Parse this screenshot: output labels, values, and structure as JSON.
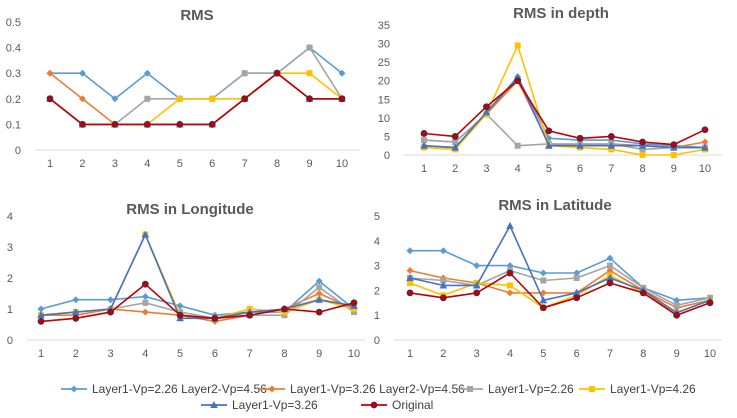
{
  "legend": [
    {
      "name": "Layer1-Vp=2.26  Layer2-Vp=4.56",
      "color": "#5b9bd5",
      "marker": "diamond"
    },
    {
      "name": "Layer1-Vp=3.26  Layer2-Vp=4.56",
      "color": "#ed7d31",
      "marker": "diamond"
    },
    {
      "name": "Layer1-Vp=2.26",
      "color": "#a5a5a5",
      "marker": "square"
    },
    {
      "name": "Layer1-Vp=4.26",
      "color": "#ffc000",
      "marker": "square"
    },
    {
      "name": "Layer1-Vp=3.26",
      "color": "#4472c4",
      "marker": "triangle"
    },
    {
      "name": "Original",
      "color": "#c00000",
      "marker": "circle"
    }
  ],
  "chart_data": [
    {
      "type": "line",
      "title": "RMS",
      "x": [
        1,
        2,
        3,
        4,
        5,
        6,
        7,
        8,
        9,
        10
      ],
      "ylim": [
        0,
        0.5
      ],
      "yticks": [
        "0",
        "0.1",
        "0.2",
        "0.3",
        "0.4",
        "0.5"
      ],
      "grid": false,
      "series": [
        {
          "name": "Layer1-Vp=2.26  Layer2-Vp=4.56",
          "values": [
            0.3,
            0.3,
            0.2,
            0.3,
            0.2,
            0.2,
            0.3,
            0.3,
            0.4,
            0.3
          ]
        },
        {
          "name": "Layer1-Vp=3.26  Layer2-Vp=4.56",
          "values": [
            0.3,
            0.2,
            0.1,
            0.1,
            0.1,
            0.1,
            0.2,
            0.3,
            0.2,
            0.2
          ]
        },
        {
          "name": "Layer1-Vp=2.26",
          "values": [
            0.2,
            0.1,
            0.1,
            0.2,
            0.2,
            0.2,
            0.3,
            0.3,
            0.4,
            0.2
          ]
        },
        {
          "name": "Layer1-Vp=4.26",
          "values": [
            0.2,
            0.1,
            0.1,
            0.1,
            0.2,
            0.2,
            0.2,
            0.3,
            0.3,
            0.2
          ]
        },
        {
          "name": "Layer1-Vp=3.26",
          "values": [
            0.2,
            0.1,
            0.1,
            0.1,
            0.1,
            0.1,
            0.2,
            0.3,
            0.2,
            0.2
          ]
        },
        {
          "name": "Original",
          "values": [
            0.2,
            0.1,
            0.1,
            0.1,
            0.1,
            0.1,
            0.2,
            0.3,
            0.2,
            0.2
          ]
        }
      ]
    },
    {
      "type": "line",
      "title": "RMS in depth",
      "x": [
        1,
        2,
        3,
        4,
        5,
        6,
        7,
        8,
        9,
        10
      ],
      "ylim": [
        0,
        35
      ],
      "yticks": [
        "0",
        "5",
        "10",
        "15",
        "20",
        "25",
        "30",
        "35"
      ],
      "grid": false,
      "series": [
        {
          "name": "Layer1-Vp=2.26  Layer2-Vp=4.56",
          "values": [
            4,
            3.5,
            11,
            21,
            4.5,
            4,
            4,
            3,
            2.5,
            2
          ]
        },
        {
          "name": "Layer1-Vp=3.26  Layer2-Vp=4.56",
          "values": [
            2.5,
            2,
            11,
            20,
            3,
            2.5,
            3,
            2.5,
            2,
            3.5
          ]
        },
        {
          "name": "Layer1-Vp=2.26",
          "values": [
            4,
            3.5,
            11,
            2.5,
            3,
            3,
            3,
            1.5,
            2,
            2
          ]
        },
        {
          "name": "Layer1-Vp=4.26",
          "values": [
            2,
            1.5,
            11,
            29.5,
            2.5,
            2,
            1.5,
            0,
            0,
            1.5
          ]
        },
        {
          "name": "Layer1-Vp=3.26",
          "values": [
            2.5,
            2,
            11.5,
            21,
            2.5,
            2.5,
            2.5,
            2.5,
            2,
            2
          ]
        },
        {
          "name": "Original",
          "values": [
            5.8,
            5,
            13,
            20,
            6.5,
            4.5,
            5,
            3.5,
            2.8,
            6.8
          ]
        }
      ]
    },
    {
      "type": "line",
      "title": "RMS in Longitude",
      "x": [
        1,
        2,
        3,
        4,
        5,
        6,
        7,
        8,
        9,
        10
      ],
      "ylim": [
        0,
        4
      ],
      "yticks": [
        "0",
        "1",
        "2",
        "3",
        "4"
      ],
      "grid": false,
      "series": [
        {
          "name": "Layer1-Vp=2.26  Layer2-Vp=4.56",
          "values": [
            1,
            1.3,
            1.3,
            1.4,
            1.1,
            0.8,
            0.9,
            0.9,
            1.9,
            1
          ]
        },
        {
          "name": "Layer1-Vp=3.26  Layer2-Vp=4.56",
          "values": [
            0.8,
            0.8,
            1,
            0.9,
            0.8,
            0.6,
            0.8,
            1,
            1.5,
            1
          ]
        },
        {
          "name": "Layer1-Vp=2.26",
          "values": [
            0.8,
            0.9,
            1,
            1.2,
            0.9,
            0.7,
            0.8,
            0.8,
            1.7,
            0.9
          ]
        },
        {
          "name": "Layer1-Vp=4.26",
          "values": [
            0.8,
            0.9,
            1,
            3.4,
            0.8,
            0.7,
            1,
            0.9,
            1.3,
            1
          ]
        },
        {
          "name": "Layer1-Vp=3.26",
          "values": [
            0.8,
            0.9,
            1,
            3.4,
            0.7,
            0.7,
            0.9,
            1,
            1.3,
            1.1
          ]
        },
        {
          "name": "Original",
          "values": [
            0.6,
            0.7,
            0.9,
            1.8,
            0.8,
            0.7,
            0.8,
            1,
            0.9,
            1.2
          ]
        }
      ]
    },
    {
      "type": "line",
      "title": "RMS in Latitude",
      "x": [
        1,
        2,
        3,
        4,
        5,
        6,
        7,
        8,
        9,
        10
      ],
      "ylim": [
        0,
        5
      ],
      "yticks": [
        "0",
        "1",
        "2",
        "3",
        "4",
        "5"
      ],
      "grid": false,
      "series": [
        {
          "name": "Layer1-Vp=2.26  Layer2-Vp=4.56",
          "values": [
            3.6,
            3.6,
            3,
            3,
            2.7,
            2.7,
            3.3,
            2.1,
            1.6,
            1.7
          ]
        },
        {
          "name": "Layer1-Vp=3.26  Layer2-Vp=4.56",
          "values": [
            2.8,
            2.5,
            2.3,
            1.9,
            1.9,
            1.9,
            2.8,
            2,
            1.3,
            1.6
          ]
        },
        {
          "name": "Layer1-Vp=2.26",
          "values": [
            2.5,
            2.4,
            2.2,
            2.8,
            2.4,
            2.5,
            3,
            2.1,
            1.4,
            1.7
          ]
        },
        {
          "name": "Layer1-Vp=4.26",
          "values": [
            2.3,
            1.8,
            2.3,
            2.2,
            1.3,
            1.8,
            2.6,
            1.9,
            1.1,
            1.6
          ]
        },
        {
          "name": "Layer1-Vp=3.26",
          "values": [
            2.5,
            2.2,
            2.2,
            4.6,
            1.6,
            1.9,
            2.5,
            2,
            1.1,
            1.6
          ]
        },
        {
          "name": "Original",
          "values": [
            1.9,
            1.7,
            1.9,
            2.7,
            1.3,
            1.7,
            2.3,
            1.9,
            1,
            1.5
          ]
        }
      ]
    }
  ]
}
